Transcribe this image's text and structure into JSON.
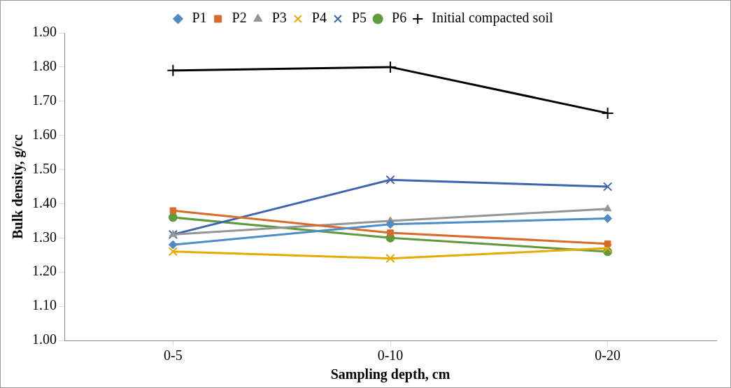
{
  "chart_data": {
    "type": "line",
    "xlabel": "Sampling depth, cm",
    "ylabel": "Bulk density, g/cc",
    "categories": [
      "0-5",
      "0-10",
      "0-20"
    ],
    "series": [
      {
        "name": "P1",
        "color": "#4f8bc4",
        "marker": "diamond",
        "values": [
          1.28,
          1.34,
          1.357
        ]
      },
      {
        "name": "P2",
        "color": "#d86b2b",
        "marker": "square",
        "values": [
          1.38,
          1.315,
          1.283
        ]
      },
      {
        "name": "P3",
        "color": "#959595",
        "marker": "triangle",
        "values": [
          1.31,
          1.35,
          1.385
        ]
      },
      {
        "name": "P4",
        "color": "#e6ab00",
        "marker": "cross",
        "values": [
          1.26,
          1.24,
          1.27
        ]
      },
      {
        "name": "P5",
        "color": "#3f64ae",
        "marker": "cross",
        "values": [
          1.31,
          1.47,
          1.45
        ]
      },
      {
        "name": "P6",
        "color": "#5f9a3c",
        "marker": "circle",
        "values": [
          1.36,
          1.3,
          1.26
        ]
      },
      {
        "name": "Initial compacted soil",
        "color": "#000000",
        "marker": "plus",
        "values": [
          1.79,
          1.8,
          1.665
        ]
      }
    ],
    "ylim": [
      1.0,
      1.9
    ],
    "yticks": [
      {
        "value": 1.0,
        "label": "1.00"
      },
      {
        "value": 1.1,
        "label": "1.10"
      },
      {
        "value": 1.2,
        "label": "1.20"
      },
      {
        "value": 1.3,
        "label": "1.30"
      },
      {
        "value": 1.4,
        "label": "1.40"
      },
      {
        "value": 1.5,
        "label": "1.50"
      },
      {
        "value": 1.6,
        "label": "1.60"
      },
      {
        "value": 1.7,
        "label": "1.70"
      },
      {
        "value": 1.8,
        "label": "1.80"
      },
      {
        "value": 1.9,
        "label": "1.90"
      }
    ],
    "grid": false,
    "legend": "top",
    "line_style": "solid"
  }
}
